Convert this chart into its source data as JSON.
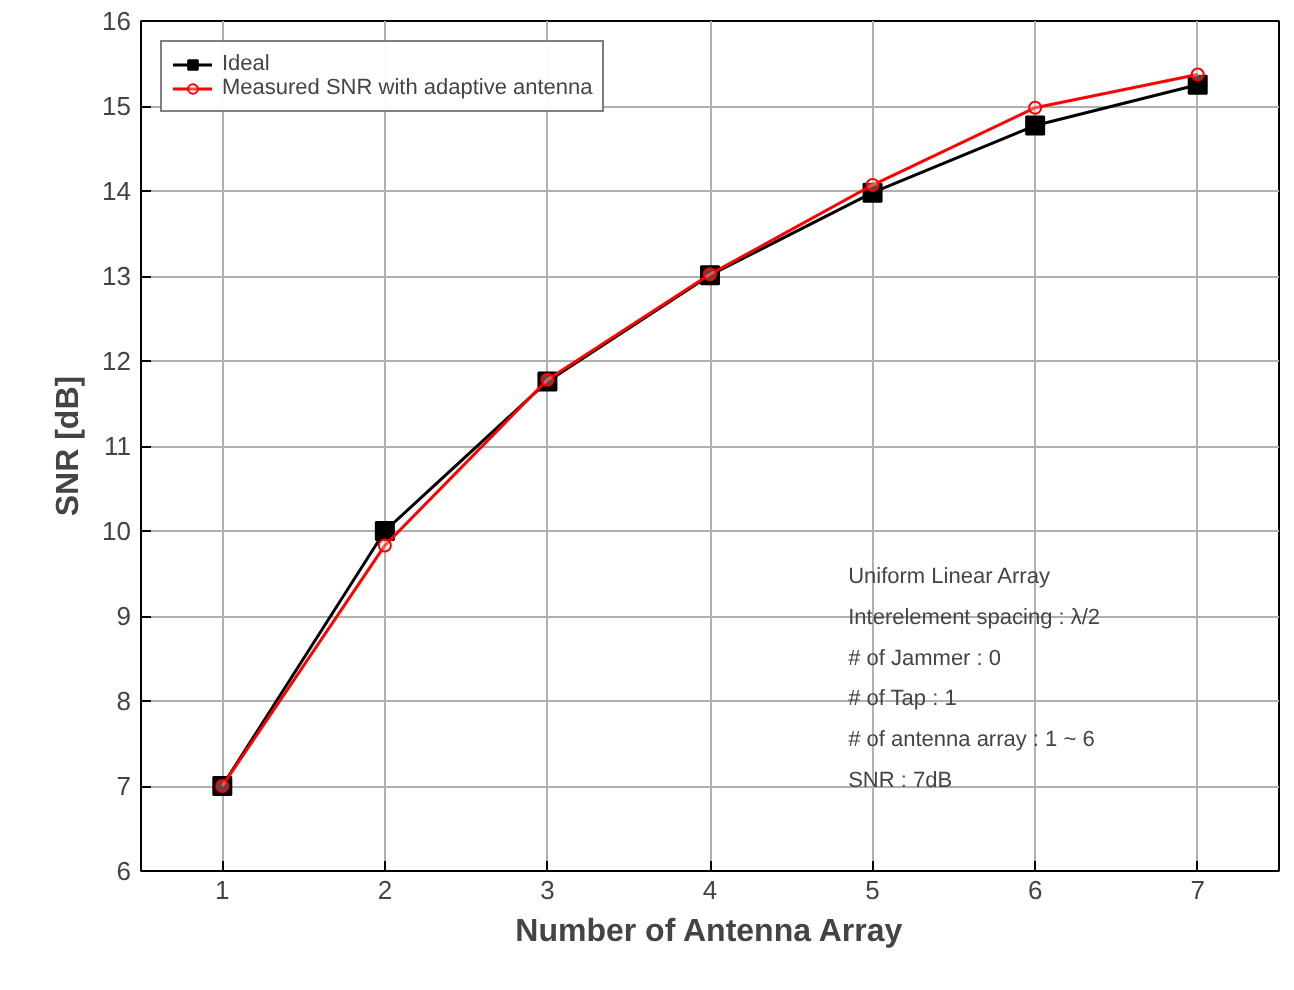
{
  "chart_data": {
    "type": "line",
    "xlabel": "Number of Antenna Array",
    "ylabel": "SNR [dB]",
    "x": [
      1,
      2,
      3,
      4,
      5,
      6,
      7
    ],
    "series": [
      {
        "name": "Ideal",
        "color": "#000000",
        "marker": "square",
        "values": [
          7.0,
          10.0,
          11.76,
          13.01,
          13.98,
          14.77,
          15.25
        ]
      },
      {
        "name": "Measured SNR with adaptive antenna",
        "color": "#ff0000",
        "marker": "circle",
        "values": [
          7.0,
          9.83,
          11.78,
          13.02,
          14.07,
          14.98,
          15.37
        ]
      }
    ],
    "xlim": [
      0.5,
      7.5
    ],
    "ylim": [
      6,
      16
    ],
    "xticks": [
      1,
      2,
      3,
      4,
      5,
      6,
      7
    ],
    "yticks": [
      6,
      7,
      8,
      9,
      10,
      11,
      12,
      13,
      14,
      15,
      16
    ],
    "grid": true,
    "legend": "top left",
    "line_style": "solid",
    "annotations": [
      "Uniform Linear Array",
      "Interelement spacing : λ/2",
      "# of Jammer : 0",
      "# of Tap : 1",
      "# of antenna array : 1 ~ 6",
      "SNR : 7dB"
    ]
  }
}
